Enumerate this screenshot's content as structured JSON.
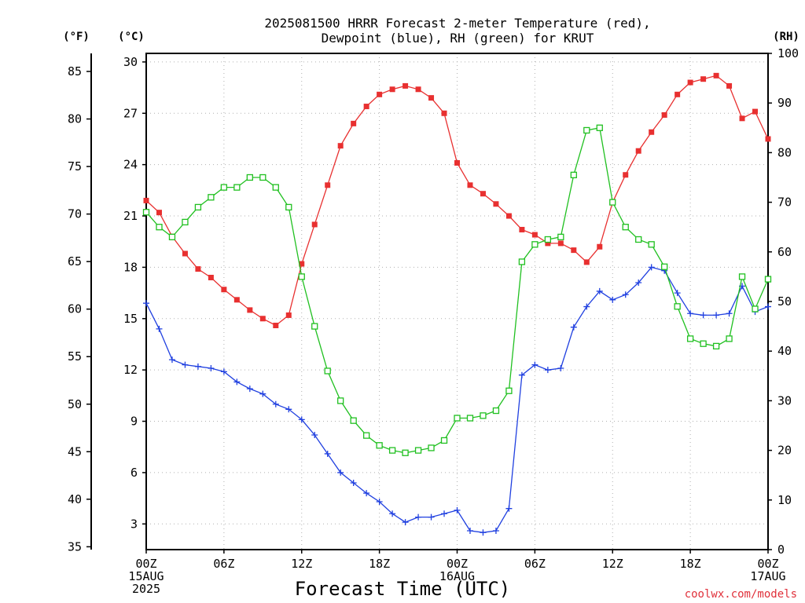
{
  "chart_data": {
    "type": "line",
    "title_line1": "2025081500 HRRR Forecast 2-meter Temperature (red),",
    "title_line2": "Dewpoint (blue), RH (green) for KRUT",
    "xlabel": "Forecast Time (UTC)",
    "credit": "coolwx.com/models",
    "units": {
      "f": "(°F)",
      "c": "(°C)",
      "rh": "(RH)"
    },
    "grid": true,
    "xlim": [
      0,
      48
    ],
    "ylim_c": [
      1.5,
      30.5
    ],
    "ylim_f": [
      34.7,
      86.9
    ],
    "ylim_rh": [
      0,
      100
    ],
    "x_ticks": [
      {
        "x": 0,
        "lines": [
          "00Z",
          "15AUG",
          "2025"
        ]
      },
      {
        "x": 6,
        "lines": [
          "06Z"
        ]
      },
      {
        "x": 12,
        "lines": [
          "12Z"
        ]
      },
      {
        "x": 18,
        "lines": [
          "18Z"
        ]
      },
      {
        "x": 24,
        "lines": [
          "00Z",
          "16AUG"
        ]
      },
      {
        "x": 30,
        "lines": [
          "06Z"
        ]
      },
      {
        "x": 36,
        "lines": [
          "12Z"
        ]
      },
      {
        "x": 42,
        "lines": [
          "18Z"
        ]
      },
      {
        "x": 48,
        "lines": [
          "00Z",
          "17AUG"
        ]
      }
    ],
    "y_ticks_c": [
      "3",
      "6",
      "9",
      "12",
      "15",
      "18",
      "21",
      "24",
      "27",
      "30"
    ],
    "y_ticks_f": [
      "35",
      "40",
      "45",
      "50",
      "55",
      "60",
      "65",
      "70",
      "75",
      "80",
      "85"
    ],
    "y_ticks_rh": [
      "0",
      "10",
      "20",
      "30",
      "40",
      "50",
      "60",
      "70",
      "80",
      "90",
      "100"
    ],
    "series": [
      {
        "color": "#e83030",
        "marker": "filled-square",
        "axis": "celsius",
        "values": [
          21.9,
          21.2,
          19.8,
          18.8,
          17.9,
          17.4,
          16.7,
          16.1,
          15.5,
          15.0,
          14.6,
          15.2,
          18.2,
          20.5,
          22.8,
          25.1,
          26.4,
          27.4,
          28.1,
          28.4,
          28.6,
          28.4,
          27.9,
          27.0,
          24.1,
          22.8,
          22.3,
          21.7,
          21.0,
          20.2,
          19.9,
          19.4,
          19.4,
          19.0,
          18.3,
          19.2,
          21.8,
          23.4,
          24.8,
          25.9,
          26.9,
          28.1,
          28.8,
          29.0,
          29.2,
          28.6,
          26.7,
          27.1,
          25.5
        ]
      },
      {
        "color": "#2040e0",
        "marker": "plus",
        "axis": "celsius",
        "values": [
          15.9,
          14.4,
          12.6,
          12.3,
          12.2,
          12.1,
          11.9,
          11.3,
          10.9,
          10.6,
          10.0,
          9.7,
          9.1,
          8.2,
          7.1,
          6.0,
          5.4,
          4.8,
          4.3,
          3.6,
          3.1,
          3.4,
          3.4,
          3.6,
          3.8,
          2.6,
          2.5,
          2.6,
          3.9,
          11.7,
          12.3,
          12.0,
          12.1,
          14.5,
          15.7,
          16.6,
          16.1,
          16.4,
          17.1,
          18.0,
          17.8,
          16.5,
          15.3,
          15.2,
          15.2,
          15.3,
          16.9,
          15.4,
          15.7
        ]
      },
      {
        "color": "#20c020",
        "marker": "open-square",
        "axis": "rh",
        "values": [
          68,
          65,
          63,
          66,
          69,
          71,
          73,
          73,
          75,
          75,
          73,
          69,
          55,
          45,
          36,
          30,
          26,
          23,
          21,
          20,
          19.5,
          20,
          20.5,
          22,
          26.5,
          26.5,
          27,
          28,
          32,
          58,
          61.5,
          62.5,
          63,
          75.5,
          84.5,
          85,
          70,
          65,
          62.5,
          61.5,
          57,
          49,
          42.5,
          41.5,
          41,
          42.5,
          55,
          48.5,
          54.5
        ]
      }
    ]
  }
}
